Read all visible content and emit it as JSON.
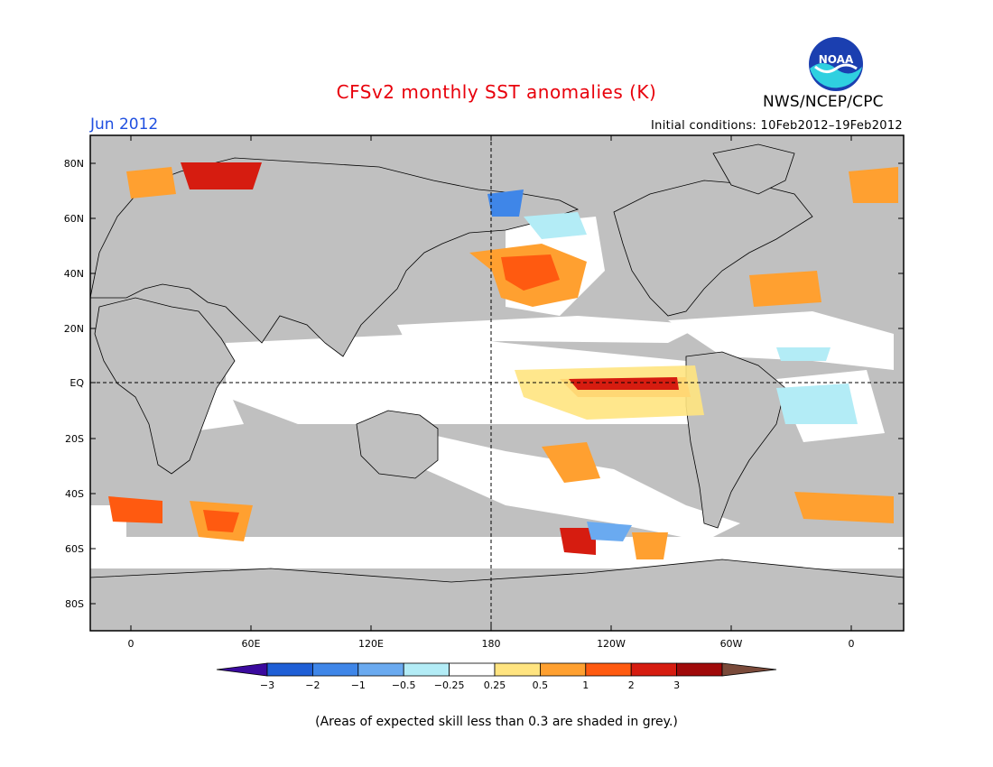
{
  "header": {
    "title": "CFSv2 monthly SST anomalies (K)",
    "month": "Jun 2012",
    "initial_conditions": "Initial conditions: 10Feb2012–19Feb2012",
    "org": "NWS/NCEP/CPC",
    "logo_text": "NOAA"
  },
  "axes": {
    "lat_ticks": [
      "80N",
      "60N",
      "40N",
      "20N",
      "EQ",
      "20S",
      "40S",
      "60S",
      "80S"
    ],
    "lon_ticks": [
      "0",
      "60E",
      "120E",
      "180",
      "120W",
      "60W",
      "0"
    ]
  },
  "colorbar": {
    "labels": [
      "−3",
      "−2",
      "−1",
      "−0.5",
      "−0.25",
      "0.25",
      "0.5",
      "1",
      "2",
      "3"
    ],
    "colors": [
      "#3b0a9e",
      "#1f5fd6",
      "#3f86e8",
      "#6aaaf0",
      "#b3ecf6",
      "#ffffff",
      "#ffe480",
      "#ffa030",
      "#ff5a10",
      "#d61c10",
      "#a00a0a",
      "#7a4a3a"
    ]
  },
  "footnote": "(Areas of expected skill less than 0.3 are shaded in grey.)",
  "colors": {
    "grey_mask": "#c0c0c0",
    "title": "#e8000b",
    "month": "#1f4fe0"
  }
}
